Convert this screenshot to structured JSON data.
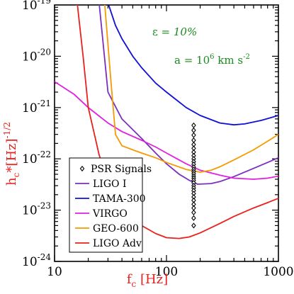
{
  "chart_data": {
    "type": "line",
    "x_scale": "log",
    "y_scale": "log",
    "xlim": [
      10,
      1000
    ],
    "ylim": [
      1e-24,
      1e-19
    ],
    "xlabel": {
      "base": "f",
      "sub": "c",
      "rest": " [Hz]"
    },
    "ylabel": {
      "base": "h",
      "sub": "c",
      "rest": "*[Hz]",
      "sup": "-1/2"
    },
    "x_tick_labels": [
      {
        "value": 10,
        "text": "10"
      },
      {
        "value": 100,
        "text": "100"
      },
      {
        "value": 1000,
        "text": "1000"
      }
    ],
    "y_tick_labels": [
      {
        "value": 1e-19,
        "base": "10",
        "exp": "-19"
      },
      {
        "value": 1e-20,
        "base": "10",
        "exp": "-20"
      },
      {
        "value": 1e-21,
        "base": "10",
        "exp": "-21"
      },
      {
        "value": 1e-22,
        "base": "10",
        "exp": "-22"
      },
      {
        "value": 1e-23,
        "base": "10",
        "exp": "-23"
      },
      {
        "value": 1e-24,
        "base": "10",
        "exp": "-24"
      }
    ],
    "annotations": {
      "epsilon": {
        "prefix": "ε = ",
        "value": "10%"
      },
      "accel": {
        "prefix": "a = 10",
        "sup": "6",
        "mid": " km s",
        "sup2": "-2"
      }
    },
    "legend_position": "lower-left",
    "series": [
      {
        "name": "PSR Signals",
        "color": "#000000",
        "marker": "diamond",
        "x": [
          175,
          175,
          175,
          175,
          175,
          175,
          175,
          175,
          175,
          175,
          175,
          175,
          175,
          175,
          175,
          175,
          175,
          175,
          175,
          175,
          175,
          175,
          175,
          175,
          175,
          175,
          175,
          175,
          175,
          175
        ],
        "y": [
          4.5e-22,
          3.6e-22,
          2.9e-22,
          2.3e-22,
          1.9e-22,
          1.6e-22,
          1.35e-22,
          1.15e-22,
          1e-22,
          8.8e-23,
          7.8e-23,
          6.9e-23,
          6.2e-23,
          5.6e-23,
          5.1e-23,
          4.6e-23,
          4.2e-23,
          3.8e-23,
          3.4e-23,
          3e-23,
          2.7e-23,
          2.4e-23,
          2.1e-23,
          1.8e-23,
          1.55e-23,
          1.3e-23,
          1.1e-23,
          9e-24,
          7e-24,
          5e-24
        ]
      },
      {
        "name": "LIGO I",
        "color": "#7b2fbe",
        "x": [
          10,
          15,
          20,
          25,
          30,
          40,
          60,
          80,
          100,
          130,
          160,
          190,
          250,
          300,
          400,
          600,
          800,
          1000
        ],
        "y": [
          1.1e-19,
          1.1e-19,
          1.1e-19,
          1.1e-19,
          2e-21,
          6e-22,
          2.5e-22,
          1.3e-22,
          8e-23,
          5e-23,
          3.8e-23,
          3.2e-23,
          3.3e-23,
          3.6e-23,
          4.5e-23,
          6.5e-23,
          8.5e-23,
          1.05e-22
        ]
      },
      {
        "name": "TAMA-300",
        "color": "#1010d8",
        "x": [
          10,
          15,
          20,
          25,
          30,
          35,
          40,
          50,
          60,
          80,
          100,
          150,
          200,
          300,
          400,
          500,
          700,
          1000
        ],
        "y": [
          1.1e-19,
          1.1e-19,
          1.1e-19,
          1.1e-19,
          1.1e-19,
          4e-20,
          2.2e-20,
          1e-20,
          6e-21,
          3e-21,
          2e-21,
          1e-21,
          7e-22,
          5e-22,
          4.6e-22,
          4.8e-22,
          5.6e-22,
          7e-22
        ]
      },
      {
        "name": "VIRGO",
        "color": "#e020e0",
        "x": [
          10,
          15,
          20,
          30,
          40,
          60,
          80,
          100,
          150,
          200,
          300,
          400,
          600,
          800,
          1000
        ],
        "y": [
          3.2e-21,
          1.8e-21,
          1e-21,
          5e-22,
          3.4e-22,
          2.3e-22,
          1.7e-22,
          1.3e-22,
          8e-23,
          6e-23,
          4.8e-23,
          4.2e-23,
          4e-23,
          4.2e-23,
          4.6e-23
        ]
      },
      {
        "name": "GEO-600",
        "color": "#f59a00",
        "x": [
          10,
          15,
          20,
          28,
          32,
          35,
          40,
          50,
          60,
          80,
          100,
          150,
          200,
          250,
          300,
          400,
          600,
          800,
          1000
        ],
        "y": [
          1.1e-19,
          1.1e-19,
          1.1e-19,
          1.1e-19,
          3e-21,
          3e-22,
          1.8e-22,
          1.5e-22,
          1.3e-22,
          1.05e-22,
          8.5e-23,
          6.2e-23,
          5.5e-23,
          6e-23,
          7e-23,
          9.5e-23,
          1.5e-22,
          2.2e-22,
          3e-22
        ]
      },
      {
        "name": "LIGO Adv",
        "color": "#e8201e",
        "x": [
          10,
          12,
          14,
          16,
          18,
          20,
          25,
          30,
          40,
          50,
          60,
          80,
          100,
          130,
          160,
          200,
          300,
          400,
          600,
          800,
          1000
        ],
        "y": [
          1.1e-19,
          1.1e-19,
          1.1e-19,
          1e-19,
          1e-20,
          1e-21,
          1.2e-22,
          3.5e-23,
          1.2e-23,
          7e-24,
          5e-24,
          3.5e-24,
          2.9e-24,
          2.8e-24,
          3e-24,
          3.6e-24,
          5.5e-24,
          7.5e-24,
          1.1e-23,
          1.4e-23,
          1.7e-23
        ]
      }
    ]
  }
}
